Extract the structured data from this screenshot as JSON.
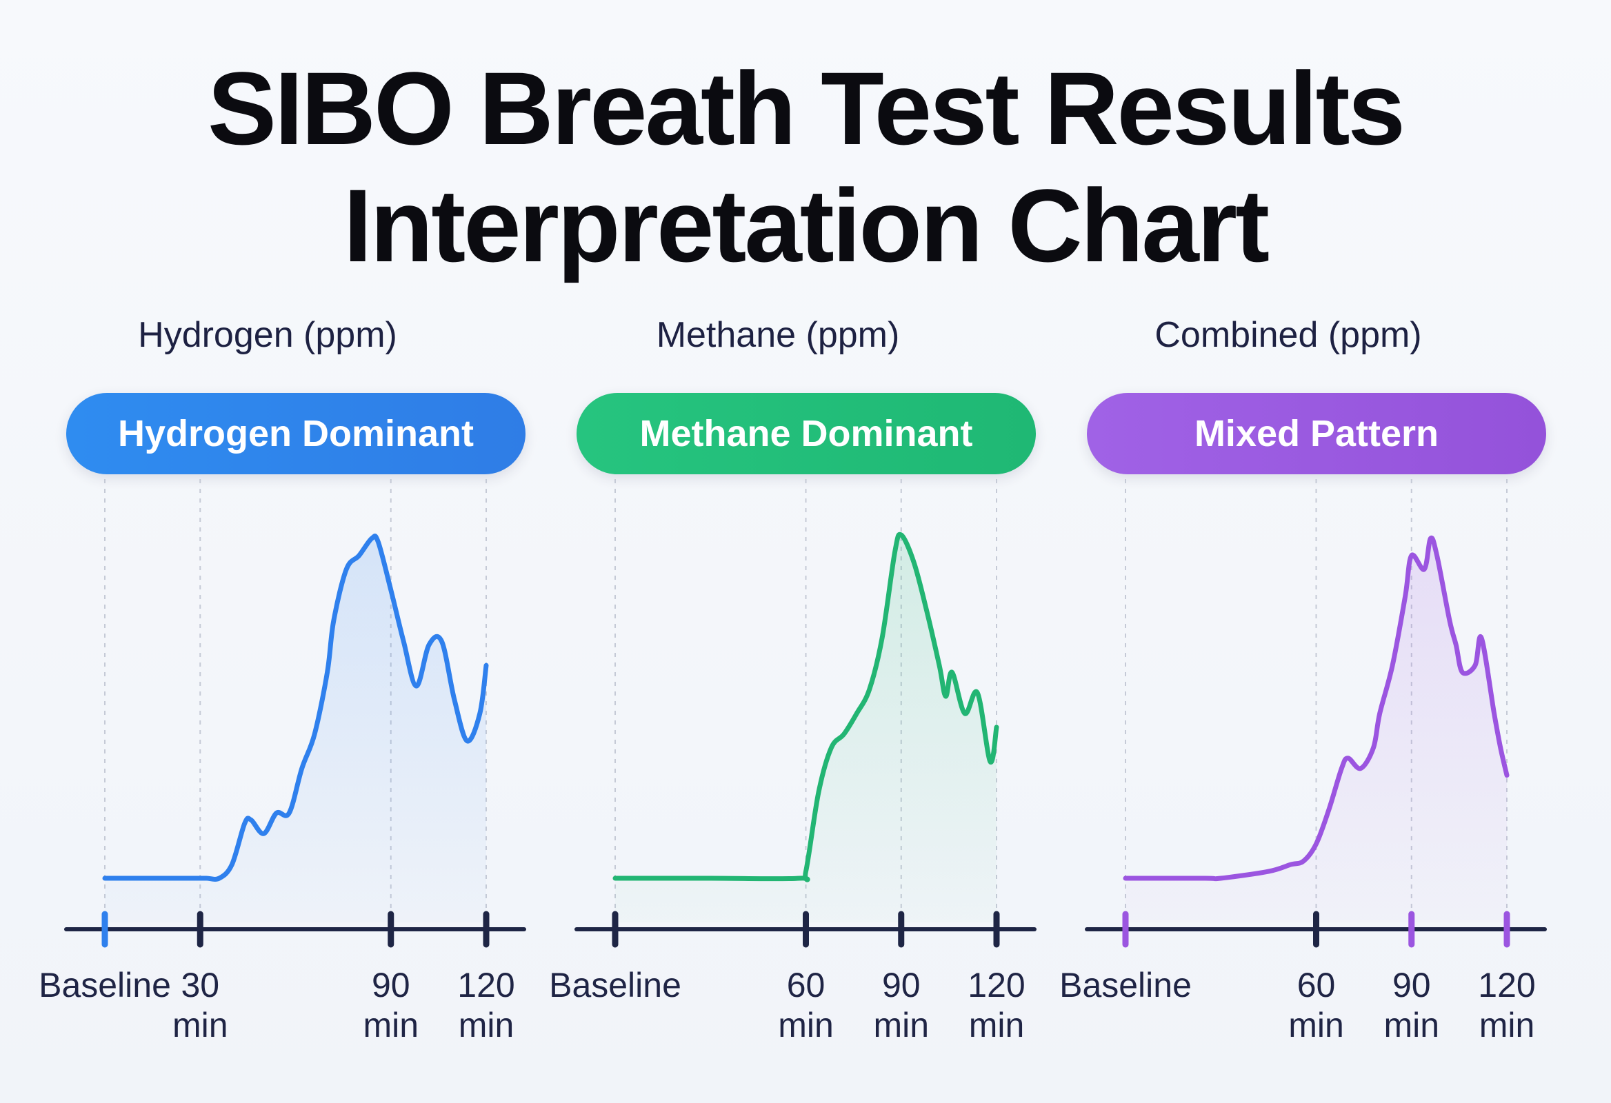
{
  "title_line1": "SIBO Breath Test Results",
  "title_line2": "Interpretation Chart",
  "chart_data": [
    {
      "type": "line",
      "heading": "Hydrogen (ppm)",
      "badge": "Hydrogen Dominant",
      "color": "#2f80ed",
      "pill_gradient": [
        "#2f8cf0",
        "#2f7de6"
      ],
      "ticks": [
        {
          "line1": "Baseline",
          "line2": "",
          "x": 0,
          "accent": true
        },
        {
          "line1": "30",
          "line2": "min",
          "x": 30,
          "accent": false
        },
        {
          "line1": "90",
          "line2": "min",
          "x": 90,
          "accent": false
        },
        {
          "line1": "120",
          "line2": "min",
          "x": 120,
          "accent": false
        }
      ],
      "xlim": [
        0,
        120
      ],
      "ylim": [
        0,
        100
      ],
      "x": [
        0,
        20,
        28,
        32,
        36,
        40,
        44,
        46,
        50,
        54,
        58,
        62,
        66,
        70,
        72,
        76,
        80,
        84,
        86,
        90,
        94,
        98,
        102,
        106,
        110,
        114,
        118,
        120
      ],
      "y": [
        0,
        0,
        0,
        0,
        0,
        4,
        16,
        17,
        13,
        19,
        19,
        32,
        42,
        60,
        75,
        90,
        94,
        99,
        98,
        84,
        69,
        56,
        68,
        69,
        52,
        40,
        48,
        62
      ]
    },
    {
      "type": "line",
      "heading": "Methane (ppm)",
      "badge": "Methane Dominant",
      "color": "#22b573",
      "pill_gradient": [
        "#26c47f",
        "#1fb874"
      ],
      "ticks": [
        {
          "line1": "Baseline",
          "line2": "",
          "x": 0,
          "accent": false
        },
        {
          "line1": "60",
          "line2": "min",
          "x": 60,
          "accent": false
        },
        {
          "line1": "90",
          "line2": "min",
          "x": 90,
          "accent": false
        },
        {
          "line1": "120",
          "line2": "min",
          "x": 120,
          "accent": false
        }
      ],
      "xlim": [
        0,
        120
      ],
      "ylim": [
        0,
        100
      ],
      "x": [
        0,
        30,
        58,
        60,
        64,
        68,
        72,
        76,
        80,
        84,
        88,
        90,
        94,
        98,
        102,
        104,
        106,
        110,
        114,
        118,
        120
      ],
      "y": [
        0,
        0,
        0,
        2,
        25,
        38,
        42,
        48,
        55,
        70,
        95,
        100,
        92,
        78,
        62,
        53,
        60,
        48,
        54,
        34,
        44
      ]
    },
    {
      "type": "line",
      "heading": "Combined (ppm)",
      "badge": "Mixed Pattern",
      "color": "#9b55e0",
      "pill_gradient": [
        "#a062e6",
        "#9452da"
      ],
      "ticks": [
        {
          "line1": "Baseline",
          "line2": "",
          "x": 0,
          "accent": true
        },
        {
          "line1": "60",
          "line2": "min",
          "x": 60,
          "accent": false
        },
        {
          "line1": "90",
          "line2": "min",
          "x": 90,
          "accent": true
        },
        {
          "line1": "120",
          "line2": "min",
          "x": 120,
          "accent": true
        }
      ],
      "xlim": [
        0,
        120
      ],
      "ylim": [
        0,
        100
      ],
      "x": [
        0,
        25,
        30,
        45,
        52,
        56,
        60,
        64,
        68,
        70,
        74,
        78,
        80,
        84,
        88,
        90,
        94,
        96,
        98,
        102,
        104,
        106,
        110,
        112,
        116,
        118,
        120
      ],
      "y": [
        0,
        0,
        0,
        2,
        4,
        5,
        10,
        20,
        32,
        35,
        32,
        38,
        48,
        62,
        82,
        94,
        90,
        99,
        94,
        75,
        68,
        60,
        62,
        70,
        48,
        38,
        30
      ]
    }
  ]
}
